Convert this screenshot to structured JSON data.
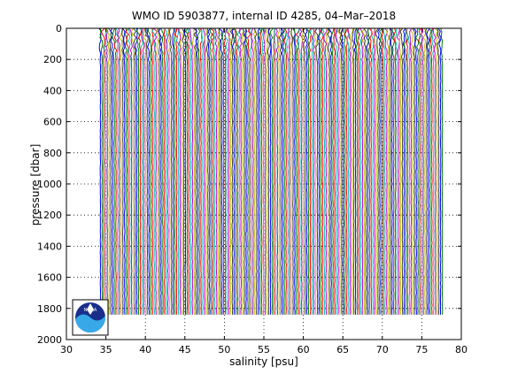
{
  "chart_data": {
    "type": "line",
    "title": "WMO ID 5903877, internal ID 4285, 04–Mar–2018",
    "xlabel": "salinity [psu]",
    "ylabel": "pressure [dbar]",
    "xlim": [
      30,
      80
    ],
    "ylim": [
      0,
      2000
    ],
    "y_reversed": true,
    "x_ticks": [
      30,
      35,
      40,
      45,
      50,
      55,
      60,
      65,
      70,
      75,
      80
    ],
    "y_ticks": [
      0,
      200,
      400,
      600,
      800,
      1000,
      1200,
      1400,
      1600,
      1800,
      2000
    ],
    "grid": "dotted",
    "profiles": {
      "count": 198,
      "first_offset_salinity": 34.3,
      "last_offset_salinity": 77.6,
      "max_pressure": 1860,
      "colors": [
        "#0000ff",
        "#008000",
        "#ff0000",
        "#00bfbf",
        "#bf00bf",
        "#bfbf00",
        "#404040"
      ]
    }
  },
  "logo": {
    "text": "NOAA"
  }
}
